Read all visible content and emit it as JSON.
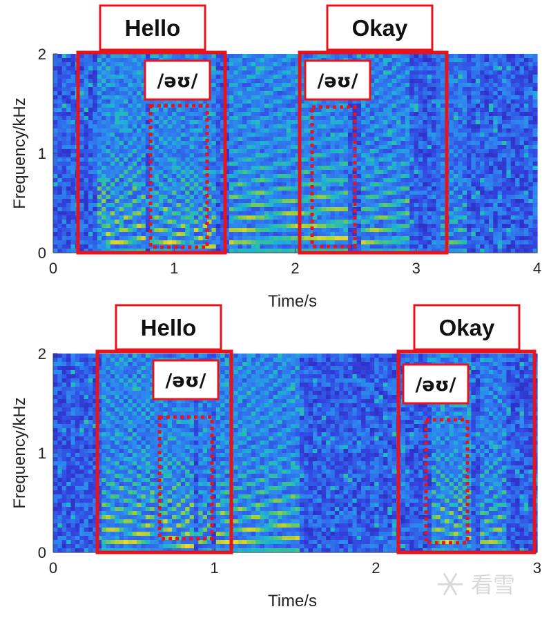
{
  "watermark": "看雪",
  "chart_data": [
    {
      "type": "heatmap",
      "title": "",
      "xlabel": "Time/s",
      "ylabel": "Frequency/kHz",
      "xlim": [
        0,
        4
      ],
      "ylim": [
        0,
        2
      ],
      "xticks": [
        0,
        1,
        2,
        3,
        4
      ],
      "yticks": [
        0,
        1,
        2
      ],
      "colormap": [
        "#2b1fae",
        "#3346e0",
        "#2e86f0",
        "#1fb5d0",
        "#3cc38c",
        "#a6cf3a",
        "#f5d82b"
      ],
      "word_boxes": [
        {
          "label": "Hello",
          "t_start": 0.22,
          "t_end": 1.42
        },
        {
          "label": "Okay",
          "t_start": 2.05,
          "t_end": 3.25
        }
      ],
      "phoneme_boxes": [
        {
          "label": "/əʊ/",
          "t_start": 0.8,
          "t_end": 1.28,
          "f_low": 0.06,
          "f_high": 1.5
        },
        {
          "label": "/əʊ/",
          "t_start": 2.15,
          "t_end": 2.5,
          "f_low": 0.06,
          "f_high": 1.5
        }
      ]
    },
    {
      "type": "heatmap",
      "title": "",
      "xlabel": "Time/s",
      "ylabel": "Frequency/kHz",
      "xlim": [
        0,
        3
      ],
      "ylim": [
        0,
        2
      ],
      "xticks": [
        0,
        1,
        2,
        3
      ],
      "yticks": [
        0,
        1,
        2
      ],
      "colormap": [
        "#2b1fae",
        "#3346e0",
        "#2e86f0",
        "#1fb5d0",
        "#3cc38c",
        "#a6cf3a",
        "#f5d82b"
      ],
      "word_boxes": [
        {
          "label": "Hello",
          "t_start": 0.28,
          "t_end": 1.1
        },
        {
          "label": "Okay",
          "t_start": 2.15,
          "t_end": 2.98
        }
      ],
      "phoneme_boxes": [
        {
          "label": "/əʊ/",
          "t_start": 0.65,
          "t_end": 0.98,
          "f_low": 0.12,
          "f_high": 1.38
        },
        {
          "label": "/əʊ/",
          "t_start": 2.33,
          "t_end": 2.6,
          "f_low": 0.08,
          "f_high": 1.38
        }
      ]
    }
  ]
}
